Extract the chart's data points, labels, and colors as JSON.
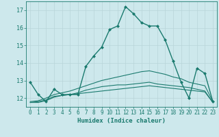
{
  "title": "",
  "xlabel": "Humidex (Indice chaleur)",
  "xlim": [
    -0.5,
    23.5
  ],
  "ylim": [
    11.5,
    17.5
  ],
  "yticks": [
    12,
    13,
    14,
    15,
    16,
    17
  ],
  "xticks": [
    0,
    1,
    2,
    3,
    4,
    5,
    6,
    7,
    8,
    9,
    10,
    11,
    12,
    13,
    14,
    15,
    16,
    17,
    18,
    19,
    20,
    21,
    22,
    23
  ],
  "bg_color": "#cde8ec",
  "line_color": "#1a7a6e",
  "grid_color": "#b8d4d8",
  "curves": [
    {
      "x": [
        0,
        1,
        2,
        3,
        4,
        5,
        6,
        7,
        8,
        9,
        10,
        11,
        12,
        13,
        14,
        15,
        16,
        17,
        18,
        19,
        20,
        21,
        22,
        23
      ],
      "y": [
        12.9,
        12.2,
        11.8,
        12.5,
        12.2,
        12.2,
        12.2,
        13.8,
        14.4,
        14.9,
        15.9,
        16.1,
        17.2,
        16.8,
        16.3,
        16.1,
        16.1,
        15.3,
        14.1,
        12.9,
        12.0,
        13.7,
        13.4,
        11.8
      ],
      "marker": true
    },
    {
      "x": [
        0,
        1,
        2,
        3,
        4,
        5,
        6,
        7,
        8,
        9,
        10,
        11,
        12,
        13,
        14,
        15,
        16,
        17,
        18,
        19,
        20,
        21,
        22,
        23
      ],
      "y": [
        11.75,
        11.75,
        11.85,
        12.05,
        12.15,
        12.2,
        12.25,
        12.3,
        12.35,
        12.4,
        12.45,
        12.5,
        12.55,
        12.6,
        12.65,
        12.7,
        12.65,
        12.6,
        12.55,
        12.5,
        12.45,
        12.4,
        12.35,
        11.75
      ],
      "marker": false
    },
    {
      "x": [
        0,
        1,
        2,
        3,
        4,
        5,
        6,
        7,
        8,
        9,
        10,
        11,
        12,
        13,
        14,
        15,
        16,
        17,
        18,
        19,
        20,
        21,
        22,
        23
      ],
      "y": [
        11.75,
        11.8,
        11.9,
        12.1,
        12.15,
        12.2,
        12.3,
        12.45,
        12.55,
        12.65,
        12.7,
        12.75,
        12.75,
        12.8,
        12.85,
        12.9,
        12.8,
        12.75,
        12.7,
        12.65,
        12.6,
        12.5,
        12.4,
        11.75
      ],
      "marker": false
    },
    {
      "x": [
        0,
        1,
        2,
        3,
        4,
        5,
        6,
        7,
        8,
        9,
        10,
        11,
        12,
        13,
        14,
        15,
        16,
        17,
        18,
        19,
        20,
        21,
        22,
        23
      ],
      "y": [
        11.8,
        11.85,
        12.0,
        12.2,
        12.3,
        12.4,
        12.55,
        12.7,
        12.85,
        13.0,
        13.1,
        13.2,
        13.3,
        13.4,
        13.5,
        13.55,
        13.45,
        13.35,
        13.2,
        13.1,
        12.9,
        12.8,
        12.7,
        11.8
      ],
      "marker": false
    }
  ]
}
